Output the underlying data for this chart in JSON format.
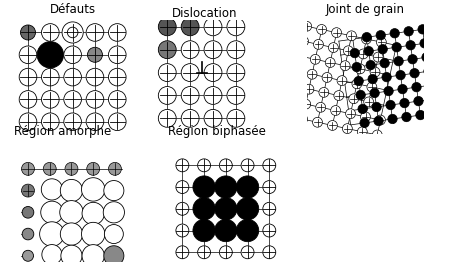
{
  "title_defauts": "Défauts",
  "title_dislocation": "Dislocation",
  "title_joint": "Joint de grain",
  "title_amorphe": "Région amorphe",
  "title_biphasee": "Région biphasée",
  "bg_color": "#ffffff",
  "title_fontsize": 8.5
}
